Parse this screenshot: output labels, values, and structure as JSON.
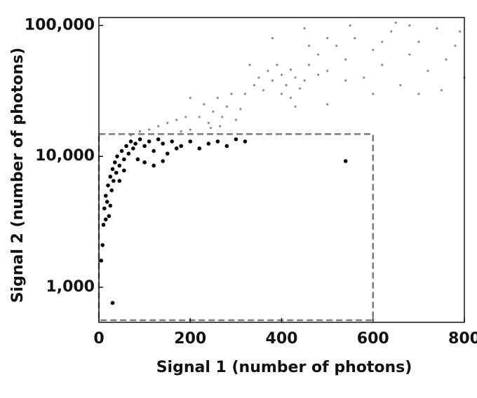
{
  "chart_data": {
    "type": "scatter",
    "x_label": "Signal 1 (number of photons)",
    "y_label": "Signal 2 (number of photons)",
    "xlim": [
      0,
      800
    ],
    "xticks": [
      0,
      200,
      400,
      600,
      800
    ],
    "ylim": [
      540,
      115000
    ],
    "log_y": true,
    "yticks": [
      {
        "value": 1000,
        "label": "1,000"
      },
      {
        "value": 10000,
        "label": "10,000"
      },
      {
        "value": 100000,
        "label": "100,000"
      }
    ],
    "gate": {
      "x": [
        0,
        600
      ],
      "y": [
        560,
        14800
      ],
      "color": "#7a7a7a"
    },
    "series": [
      {
        "color": "#8c8c8c",
        "x": [
          70,
          90,
          110,
          130,
          150,
          170,
          190,
          200,
          180,
          220,
          230,
          240,
          250,
          260,
          270,
          280,
          300,
          310,
          290,
          245,
          265,
          320,
          340,
          350,
          360,
          370,
          380,
          390,
          400,
          410,
          420,
          430,
          440,
          450,
          400,
          420,
          460,
          480,
          500,
          520,
          540,
          560,
          580,
          600,
          620,
          640,
          660,
          680,
          700,
          720,
          740,
          760,
          780,
          800,
          500,
          550,
          650,
          700,
          750,
          600,
          540,
          480,
          460,
          790,
          620,
          680,
          380,
          450,
          330,
          200,
          500,
          430
        ],
        "y": [
          14500,
          15500,
          16000,
          17000,
          18000,
          19000,
          20000,
          16000,
          15500,
          20000,
          25000,
          18000,
          22000,
          28000,
          20000,
          24000,
          19000,
          23000,
          30000,
          16500,
          17000,
          30000,
          35000,
          40000,
          32000,
          45000,
          38000,
          50000,
          42000,
          35000,
          46000,
          40000,
          33000,
          38000,
          30000,
          28000,
          50000,
          60000,
          45000,
          70000,
          55000,
          80000,
          40000,
          65000,
          50000,
          90000,
          35000,
          60000,
          75000,
          45000,
          95000,
          55000,
          70000,
          40000,
          80000,
          100000,
          105000,
          30000,
          32000,
          30000,
          38000,
          42000,
          70000,
          90000,
          75000,
          100000,
          80000,
          95000,
          50000,
          28000,
          25000,
          24000
        ]
      },
      {
        "color": "#000000",
        "x": [
          5,
          8,
          10,
          12,
          15,
          18,
          20,
          22,
          25,
          28,
          30,
          32,
          35,
          38,
          40,
          45,
          50,
          55,
          60,
          65,
          70,
          75,
          80,
          90,
          100,
          110,
          120,
          130,
          140,
          150,
          160,
          170,
          180,
          200,
          220,
          240,
          260,
          280,
          300,
          320,
          30,
          540,
          15,
          25,
          45,
          55,
          85,
          100,
          120,
          140
        ],
        "y": [
          1600,
          2100,
          3000,
          4000,
          5000,
          4500,
          6000,
          3500,
          7000,
          5500,
          8000,
          6500,
          9000,
          7500,
          10000,
          8500,
          11000,
          9500,
          12000,
          10500,
          13000,
          11500,
          12500,
          13500,
          12000,
          13000,
          11000,
          13500,
          12500,
          10500,
          13000,
          11500,
          12000,
          13000,
          11500,
          12500,
          13000,
          12000,
          13500,
          13000,
          760,
          9200,
          3300,
          4200,
          6500,
          7800,
          9500,
          9000,
          8500,
          9200
        ]
      }
    ]
  }
}
